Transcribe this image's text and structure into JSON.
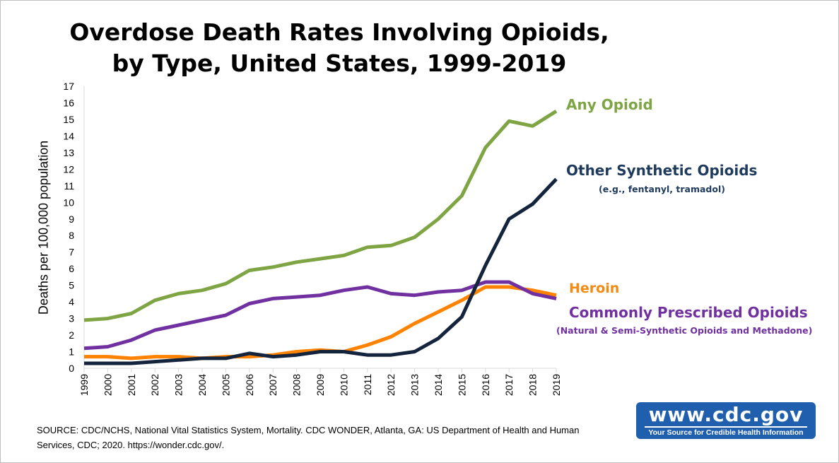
{
  "chart_data": {
    "type": "line",
    "title": "Overdose Death Rates Involving Opioids, by Type, United States, 1999-2019",
    "title_lines": [
      "Overdose Death Rates Involving Opioids,",
      "by Type, United States, 1999-2019"
    ],
    "xlabel": "",
    "ylabel": "Deaths per 100,000 population",
    "ylim": [
      0,
      17
    ],
    "yticks": [
      "0",
      "1",
      "2",
      "3",
      "4",
      "5",
      "6",
      "7",
      "8",
      "9",
      "10",
      "11",
      "12",
      "13",
      "14",
      "15",
      "16",
      "17"
    ],
    "x": [
      "1999",
      "2000",
      "2001",
      "2002",
      "2003",
      "2004",
      "2005",
      "2006",
      "2007",
      "2008",
      "2009",
      "2010",
      "2011",
      "2012",
      "2013",
      "2014",
      "2015",
      "2016",
      "2017",
      "2018",
      "2019"
    ],
    "grid": false,
    "legend": "right (labels at line ends)",
    "series": [
      {
        "name": "Any Opioid",
        "color": "#7ea444",
        "values": [
          2.9,
          3.0,
          3.3,
          4.1,
          4.5,
          4.7,
          5.1,
          5.9,
          6.1,
          6.4,
          6.6,
          6.8,
          7.3,
          7.4,
          7.9,
          9.0,
          10.4,
          13.3,
          14.9,
          14.6,
          15.5
        ]
      },
      {
        "name": "Other Synthetic Opioids",
        "subtitle": "(e.g., fentanyl, tramadol)",
        "color": "#14243d",
        "values": [
          0.3,
          0.3,
          0.3,
          0.4,
          0.5,
          0.6,
          0.6,
          0.9,
          0.7,
          0.8,
          1.0,
          1.0,
          0.8,
          0.8,
          1.0,
          1.8,
          3.1,
          6.2,
          9.0,
          9.9,
          11.4
        ]
      },
      {
        "name": "Heroin",
        "color": "#ff8200",
        "values": [
          0.7,
          0.7,
          0.6,
          0.7,
          0.7,
          0.6,
          0.7,
          0.7,
          0.8,
          1.0,
          1.1,
          1.0,
          1.4,
          1.9,
          2.7,
          3.4,
          4.1,
          4.9,
          4.9,
          4.7,
          4.4
        ]
      },
      {
        "name": "Commonly Prescribed Opioids",
        "subtitle": "(Natural & Semi-Synthetic Opioids and Methadone)",
        "color": "#7030a0",
        "values": [
          1.2,
          1.3,
          1.7,
          2.3,
          2.6,
          2.9,
          3.2,
          3.9,
          4.2,
          4.3,
          4.4,
          4.7,
          4.9,
          4.5,
          4.4,
          4.6,
          4.7,
          5.2,
          5.2,
          4.5,
          4.2
        ]
      }
    ]
  },
  "source_note": "SOURCE: CDC/NCHS, National Vital Statistics System, Mortality. CDC WONDER, Atlanta, GA: US Department of Health and Human Services, CDC; 2020. https://wonder.cdc.gov/.",
  "logo": {
    "url_text": "www.cdc.gov",
    "tagline": "Your Source for Credible Health Information"
  }
}
